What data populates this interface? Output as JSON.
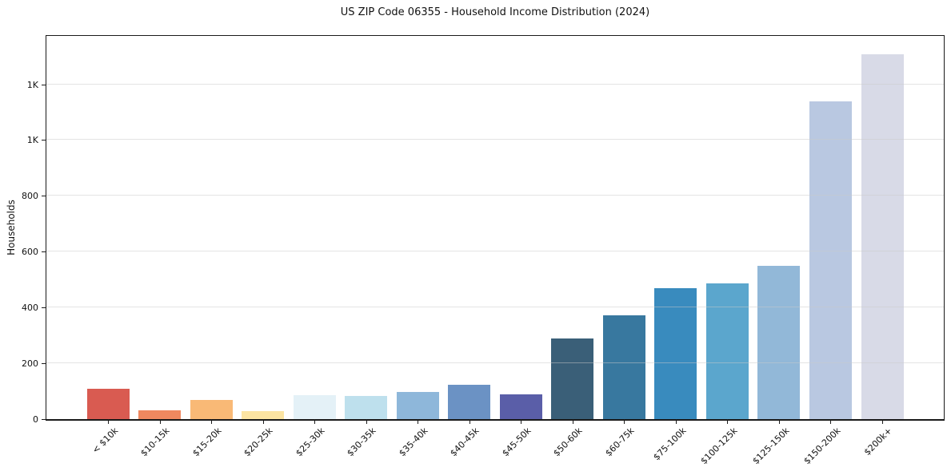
{
  "chart_data": {
    "type": "bar",
    "title": "US ZIP Code 06355 - Household Income Distribution (2024)",
    "xlabel": "",
    "ylabel": "Households",
    "categories": [
      "< $10k",
      "$10-15k",
      "$15-20k",
      "$20-25k",
      "$25-30k",
      "$30-35k",
      "$35-40k",
      "$40-45k",
      "$45-50k",
      "$50-60k",
      "$60-75k",
      "$75-100k",
      "$100-125k",
      "$125-150k",
      "$150-200k",
      "$200k+"
    ],
    "values": [
      110,
      32,
      70,
      30,
      86,
      82,
      97,
      122,
      90,
      288,
      371,
      469,
      487,
      548,
      1140,
      1306
    ],
    "bar_colors": [
      "#d95b51",
      "#f0885f",
      "#f9b976",
      "#fce4a2",
      "#e4f1f7",
      "#bee0ed",
      "#8eb7da",
      "#6b92c4",
      "#5a5ea8",
      "#3a5f78",
      "#38789f",
      "#398bbe",
      "#5ba6cd",
      "#92b8d8",
      "#b9c8e1",
      "#d8dae7"
    ],
    "ylim": [
      0,
      1376
    ],
    "yticks": {
      "values": [
        0,
        200,
        400,
        600,
        800,
        1000,
        1200
      ],
      "labels": [
        "0",
        "200",
        "400",
        "600",
        "800",
        "1K",
        "1K"
      ]
    },
    "grid": "horizontal",
    "legend": "none",
    "background_color": "#ffffff",
    "axis_color": "#1a1a1a"
  }
}
